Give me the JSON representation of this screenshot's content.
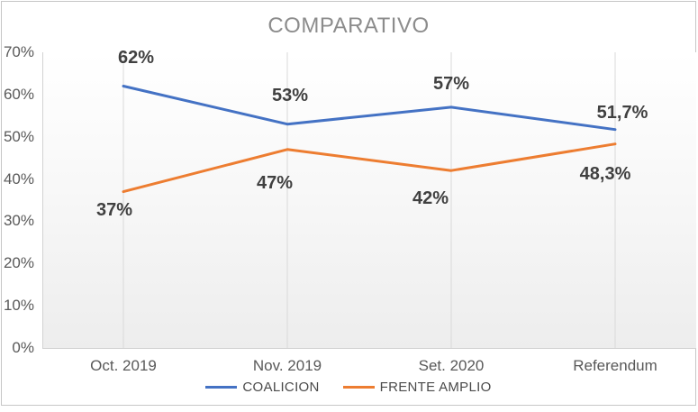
{
  "chart_data": {
    "type": "line",
    "title": "COMPARATIVO",
    "categories": [
      "Oct. 2019",
      "Nov. 2019",
      "Set. 2020",
      "Referendum"
    ],
    "series": [
      {
        "name": "COALICION",
        "color": "#4472C4",
        "values": [
          62,
          53,
          57,
          51.7
        ],
        "point_labels": [
          "62%",
          "53%",
          "57%",
          "51,7%"
        ],
        "label_position": "above"
      },
      {
        "name": "FRENTE AMPLIO",
        "color": "#ED7D31",
        "values": [
          37,
          47,
          42,
          48.3
        ],
        "point_labels": [
          "37%",
          "47%",
          "42%",
          "48,3%"
        ],
        "label_position": "below"
      }
    ],
    "y_axis": {
      "min": 0,
      "max": 70,
      "step": 10,
      "tick_labels": [
        "0%",
        "10%",
        "20%",
        "30%",
        "40%",
        "50%",
        "60%",
        "70%"
      ]
    },
    "x_axis": {
      "tick_labels": [
        "Oct. 2019",
        "Nov. 2019",
        "Set. 2020",
        "Referendum"
      ]
    },
    "legend": {
      "position": "bottom",
      "entries": [
        "COALICION",
        "FRENTE AMPLIO"
      ]
    },
    "grid": {
      "vertical": true,
      "horizontal": false
    }
  },
  "colors": {
    "series_blue": "#4472C4",
    "series_orange": "#ED7D31",
    "title_text": "#8C8C8C",
    "axis_text": "#595959",
    "data_label_text": "#404040",
    "gridline": "#D9D9D9",
    "frame_border": "#C6C6C6"
  }
}
